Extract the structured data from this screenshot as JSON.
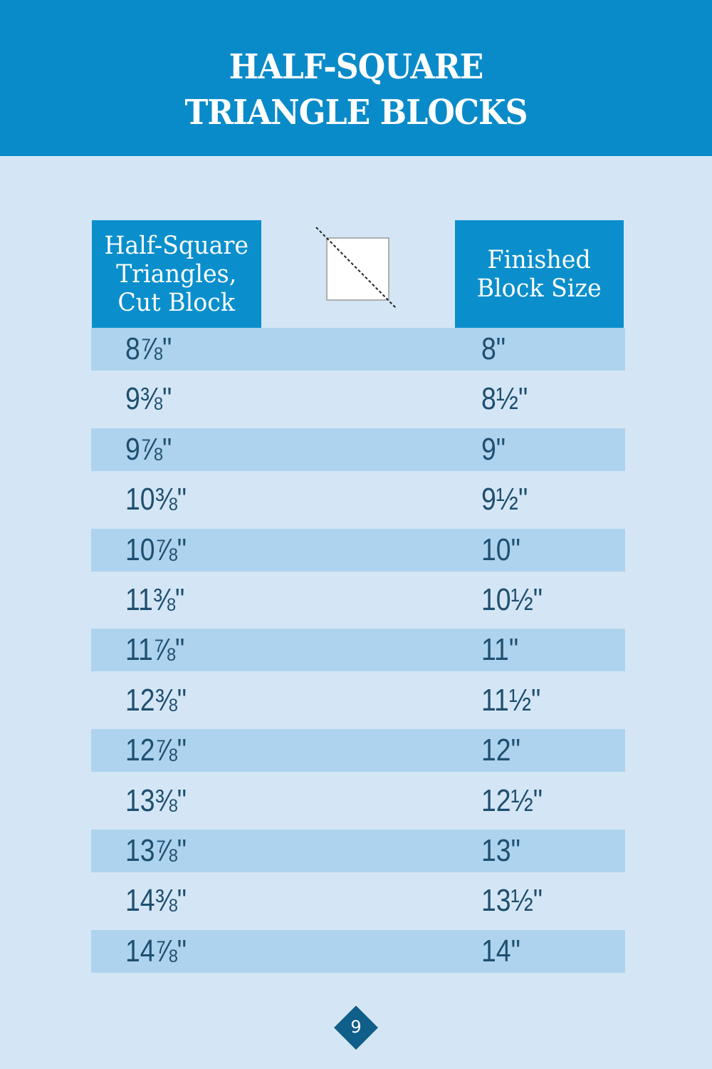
{
  "title": {
    "line1": "HALF-SQUARE",
    "line2": "TRIANGLE BLOCKS"
  },
  "table": {
    "headers": {
      "cut_block": [
        "Half-Square",
        "Triangles,",
        "Cut Block"
      ],
      "finished": [
        "Finished",
        "Block Size"
      ]
    },
    "icon": "half-square-triangle-diagram-icon",
    "rows": [
      {
        "cut": "8⅞\"",
        "finished": "8\""
      },
      {
        "cut": "9⅜\"",
        "finished": "8½\""
      },
      {
        "cut": "9⅞\"",
        "finished": "9\""
      },
      {
        "cut": "10⅜\"",
        "finished": "9½\""
      },
      {
        "cut": "10⅞\"",
        "finished": "10\""
      },
      {
        "cut": "11⅜\"",
        "finished": "10½\""
      },
      {
        "cut": "11⅞\"",
        "finished": "11\""
      },
      {
        "cut": "12⅜\"",
        "finished": "11½\""
      },
      {
        "cut": "12⅞\"",
        "finished": "12\""
      },
      {
        "cut": "13⅜\"",
        "finished": "12½\""
      },
      {
        "cut": "13⅞\"",
        "finished": "13\""
      },
      {
        "cut": "14⅜\"",
        "finished": "13½\""
      },
      {
        "cut": "14⅞\"",
        "finished": "14\""
      }
    ]
  },
  "page_number": "9",
  "colors": {
    "banner": "#0a8bc9",
    "background": "#d4e6f5",
    "stripe": "#aed3ee",
    "text": "#1f4f70",
    "page_badge": "#0f5f8a"
  }
}
